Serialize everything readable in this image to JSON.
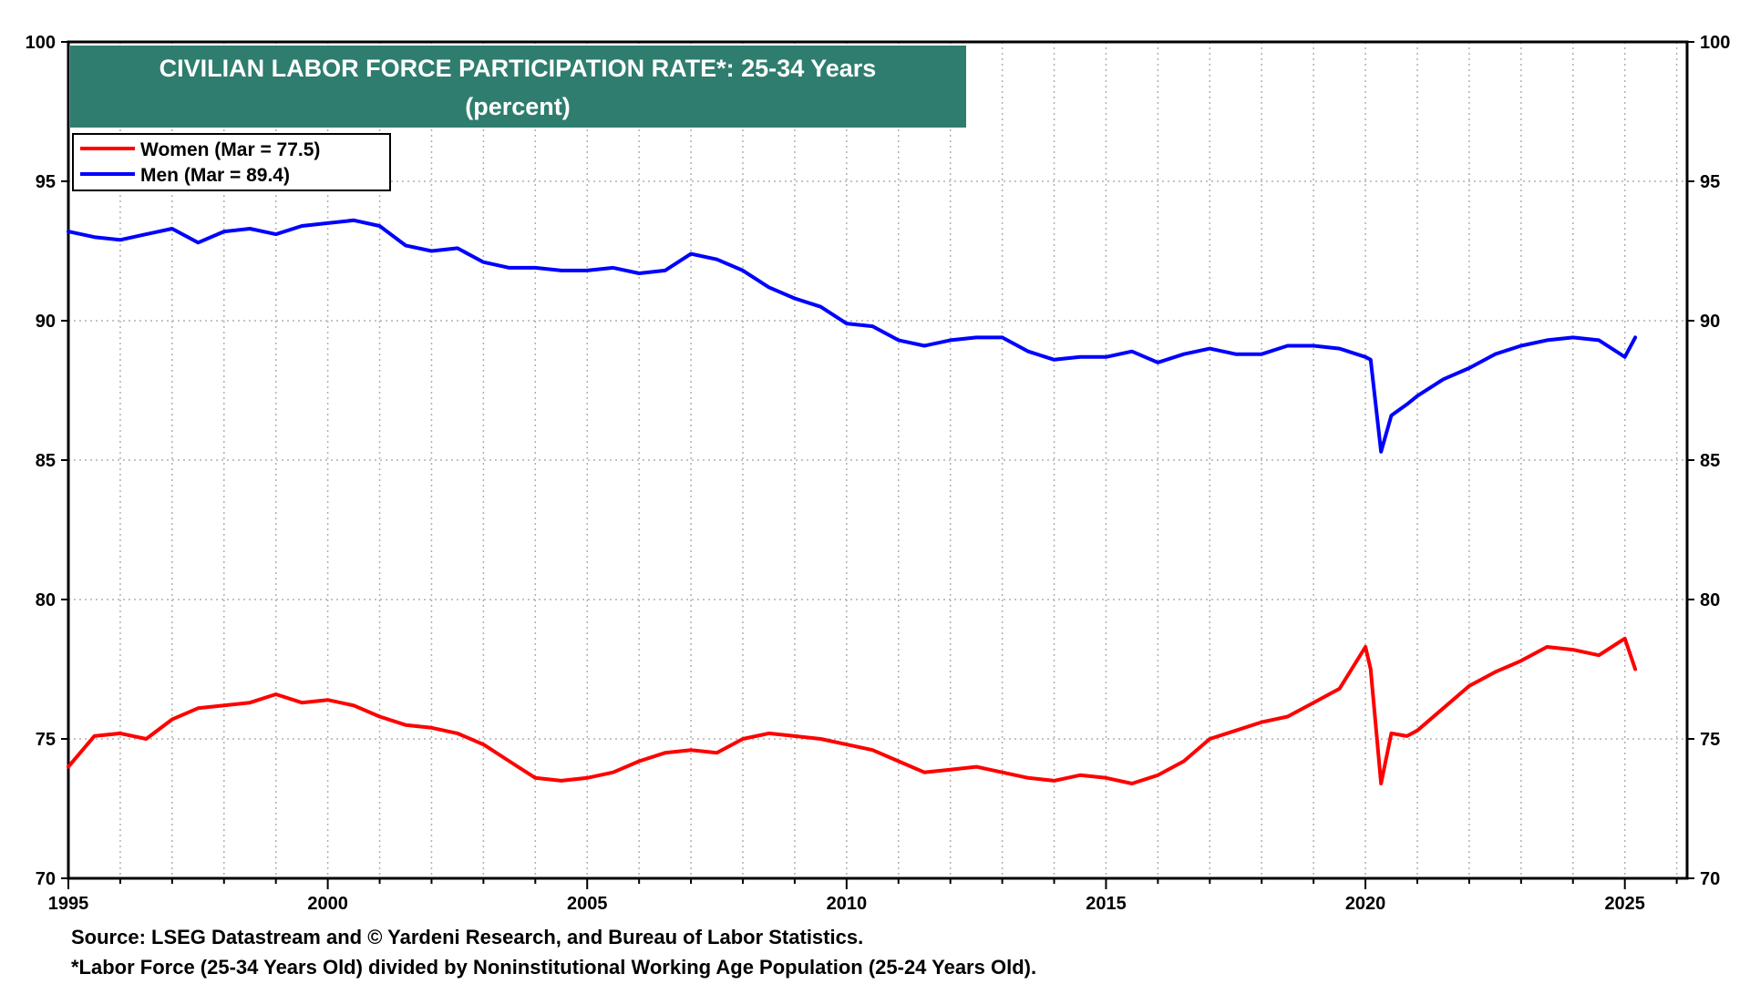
{
  "chart_data": {
    "type": "line",
    "title": "CIVILIAN LABOR FORCE PARTICIPATION RATE*: 25-34 Years",
    "subtitle": "(percent)",
    "xlim": [
      1995,
      2026.2
    ],
    "ylim": [
      70,
      100
    ],
    "x_ticks": [
      1995,
      2000,
      2005,
      2010,
      2015,
      2020,
      2025
    ],
    "y_ticks": [
      70,
      75,
      80,
      85,
      90,
      95,
      100
    ],
    "grid": true,
    "legend_position": "top-left",
    "colors": {
      "women": "#ff0000",
      "men": "#0000ff",
      "title_bg": "#2e7d6e",
      "grid": "#b0b0b0"
    },
    "series": [
      {
        "name": "Women",
        "legend_label": "Women (Mar  = 77.5)",
        "color": "#ff0000",
        "x": [
          1995.0,
          1995.5,
          1996.0,
          1996.5,
          1997.0,
          1997.5,
          1998.0,
          1998.5,
          1999.0,
          1999.5,
          2000.0,
          2000.5,
          2001.0,
          2001.5,
          2002.0,
          2002.5,
          2003.0,
          2003.5,
          2004.0,
          2004.5,
          2005.0,
          2005.5,
          2006.0,
          2006.5,
          2007.0,
          2007.5,
          2008.0,
          2008.5,
          2009.0,
          2009.5,
          2010.0,
          2010.5,
          2011.0,
          2011.5,
          2012.0,
          2012.5,
          2013.0,
          2013.5,
          2014.0,
          2014.5,
          2015.0,
          2015.5,
          2016.0,
          2016.5,
          2017.0,
          2017.5,
          2018.0,
          2018.5,
          2019.0,
          2019.5,
          2020.0,
          2020.1,
          2020.3,
          2020.5,
          2020.8,
          2021.0,
          2021.5,
          2022.0,
          2022.5,
          2023.0,
          2023.5,
          2024.0,
          2024.5,
          2025.0,
          2025.2
        ],
        "values": [
          74.0,
          75.1,
          75.2,
          75.0,
          75.7,
          76.1,
          76.2,
          76.3,
          76.6,
          76.3,
          76.4,
          76.2,
          75.8,
          75.5,
          75.4,
          75.2,
          74.8,
          74.2,
          73.6,
          73.5,
          73.6,
          73.8,
          74.2,
          74.5,
          74.6,
          74.5,
          75.0,
          75.2,
          75.1,
          75.0,
          74.8,
          74.6,
          74.2,
          73.8,
          73.9,
          74.0,
          73.8,
          73.6,
          73.5,
          73.7,
          73.6,
          73.4,
          73.7,
          74.2,
          75.0,
          75.3,
          75.6,
          75.8,
          76.3,
          76.8,
          78.3,
          77.5,
          73.4,
          75.2,
          75.1,
          75.3,
          76.1,
          76.9,
          77.4,
          77.8,
          78.3,
          78.2,
          78.0,
          78.6,
          77.5
        ]
      },
      {
        "name": "Men",
        "legend_label": "Men (Mar  = 89.4)",
        "color": "#0000ff",
        "x": [
          1995.0,
          1995.5,
          1996.0,
          1996.5,
          1997.0,
          1997.5,
          1998.0,
          1998.5,
          1999.0,
          1999.5,
          2000.0,
          2000.5,
          2001.0,
          2001.5,
          2002.0,
          2002.5,
          2003.0,
          2003.5,
          2004.0,
          2004.5,
          2005.0,
          2005.5,
          2006.0,
          2006.5,
          2007.0,
          2007.5,
          2008.0,
          2008.5,
          2009.0,
          2009.5,
          2010.0,
          2010.5,
          2011.0,
          2011.5,
          2012.0,
          2012.5,
          2013.0,
          2013.5,
          2014.0,
          2014.5,
          2015.0,
          2015.5,
          2016.0,
          2016.5,
          2017.0,
          2017.5,
          2018.0,
          2018.5,
          2019.0,
          2019.5,
          2020.0,
          2020.1,
          2020.3,
          2020.5,
          2020.8,
          2021.0,
          2021.5,
          2022.0,
          2022.5,
          2023.0,
          2023.5,
          2024.0,
          2024.5,
          2025.0,
          2025.2
        ],
        "values": [
          93.2,
          93.0,
          92.9,
          93.1,
          93.3,
          92.8,
          93.2,
          93.3,
          93.1,
          93.4,
          93.5,
          93.6,
          93.4,
          92.7,
          92.5,
          92.6,
          92.1,
          91.9,
          91.9,
          91.8,
          91.8,
          91.9,
          91.7,
          91.8,
          92.4,
          92.2,
          91.8,
          91.2,
          90.8,
          90.5,
          89.9,
          89.8,
          89.3,
          89.1,
          89.3,
          89.4,
          89.4,
          88.9,
          88.6,
          88.7,
          88.7,
          88.9,
          88.5,
          88.8,
          89.0,
          88.8,
          88.8,
          89.1,
          89.1,
          89.0,
          88.7,
          88.6,
          85.3,
          86.6,
          87.0,
          87.3,
          87.9,
          88.3,
          88.8,
          89.1,
          89.3,
          89.4,
          89.3,
          88.7,
          89.4
        ]
      }
    ]
  },
  "source_note": "Source: LSEG Datastream and © Yardeni Research, and Bureau of Labor Statistics.",
  "footnote": "*Labor Force (25-34 Years Old) divided by Noninstitutional Working Age Population (25-24 Years Old)."
}
